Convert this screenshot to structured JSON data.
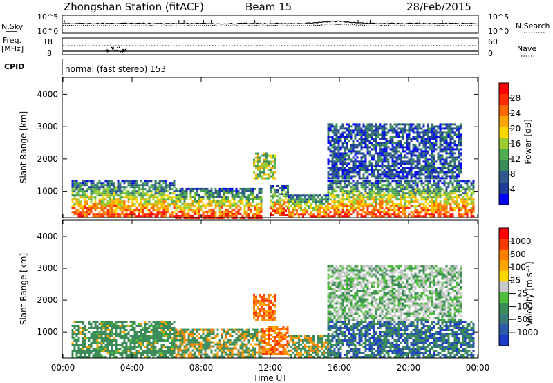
{
  "header": {
    "title": "Zhongshan Station (fitACF)",
    "beam": "Beam 15",
    "date": "28/Feb/2015"
  },
  "top_panels": {
    "noise": {
      "left_label": "N.Sky",
      "left_ticks": [
        "10^5",
        "10^0"
      ],
      "right_label": "N.Search",
      "right_ticks": [
        "10^5",
        "10^0"
      ]
    },
    "freq": {
      "left_label_1": "Freq.",
      "left_label_2": "[MHz]",
      "left_ticks": [
        "18",
        "8"
      ],
      "right_label": "Nave",
      "right_ticks": [
        "60",
        "0"
      ]
    },
    "cpid": {
      "label": "CPID",
      "text": "normal (fast stereo) 153"
    }
  },
  "chart_data": [
    {
      "type": "heatmap",
      "name": "power",
      "ylabel": "Slant Range [km]",
      "yticks": [
        "1000",
        "2000",
        "3000",
        "4000"
      ],
      "ylim": [
        200,
        4500
      ],
      "xlim_hours": [
        0,
        24
      ],
      "colorbar": {
        "label": "Power [dB]",
        "ticks": [
          "28",
          "24",
          "20",
          "16",
          "12",
          "8",
          "4"
        ],
        "colors": [
          "#0000ff",
          "#1e3c96",
          "#2e5a8c",
          "#3c8c5a",
          "#4fae4f",
          "#9acd32",
          "#ffd700",
          "#ffa500",
          "#ff6a00",
          "#ff2a00",
          "#ff0000"
        ]
      },
      "regions": [
        {
          "t0": 0.5,
          "t1": 6.5,
          "r0": 200,
          "r1": 1350,
          "level": "mixed"
        },
        {
          "t0": 6.5,
          "t1": 11.5,
          "r0": 200,
          "r1": 1100,
          "level": "mixed"
        },
        {
          "t0": 11.0,
          "t1": 12.3,
          "r0": 1400,
          "r1": 2200,
          "level": "mid"
        },
        {
          "t0": 12.0,
          "t1": 13.0,
          "r0": 300,
          "r1": 1200,
          "level": "mixed"
        },
        {
          "t0": 13.0,
          "t1": 15.3,
          "r0": 200,
          "r1": 900,
          "level": "mixed"
        },
        {
          "t0": 15.3,
          "t1": 23.8,
          "r0": 200,
          "r1": 1350,
          "level": "mixed"
        },
        {
          "t0": 15.3,
          "t1": 23.0,
          "r0": 1400,
          "r1": 3100,
          "level": "low"
        }
      ]
    },
    {
      "type": "heatmap",
      "name": "velocity",
      "ylabel": "Slant Range [km]",
      "yticks": [
        "1000",
        "2000",
        "3000",
        "4000"
      ],
      "ylim": [
        200,
        4500
      ],
      "xlim_hours": [
        0,
        24
      ],
      "xticks": [
        "00:00",
        "04:00",
        "08:00",
        "12:00",
        "16:00",
        "20:00",
        "00:00"
      ],
      "xlabel": "Time UT",
      "colorbar": {
        "label": "Velocity [m s⁻¹]",
        "ticks": [
          "1000",
          "500",
          "100",
          "25",
          "−25",
          "−100",
          "−500",
          "−1000"
        ],
        "colors": [
          "#1e3cc8",
          "#2e5aaa",
          "#3c7a78",
          "#3c8c5a",
          "#4fbe3c",
          "#c8c8c8",
          "#ffd700",
          "#ffa500",
          "#ff7f00",
          "#ff3c00",
          "#ff0000"
        ]
      },
      "regions": [
        {
          "t0": 0.5,
          "t1": 6.5,
          "r0": 200,
          "r1": 1350,
          "level": "green"
        },
        {
          "t0": 6.5,
          "t1": 11.5,
          "r0": 200,
          "r1": 1100,
          "level": "green-orange"
        },
        {
          "t0": 11.0,
          "t1": 12.3,
          "r0": 1400,
          "r1": 2200,
          "level": "orange"
        },
        {
          "t0": 11.5,
          "t1": 13.0,
          "r0": 300,
          "r1": 1200,
          "level": "orange"
        },
        {
          "t0": 13.0,
          "t1": 15.3,
          "r0": 200,
          "r1": 900,
          "level": "green-orange"
        },
        {
          "t0": 15.3,
          "t1": 23.8,
          "r0": 200,
          "r1": 1350,
          "level": "green-blue"
        },
        {
          "t0": 15.3,
          "t1": 23.0,
          "r0": 1400,
          "r1": 3100,
          "level": "grey-green"
        }
      ]
    }
  ]
}
